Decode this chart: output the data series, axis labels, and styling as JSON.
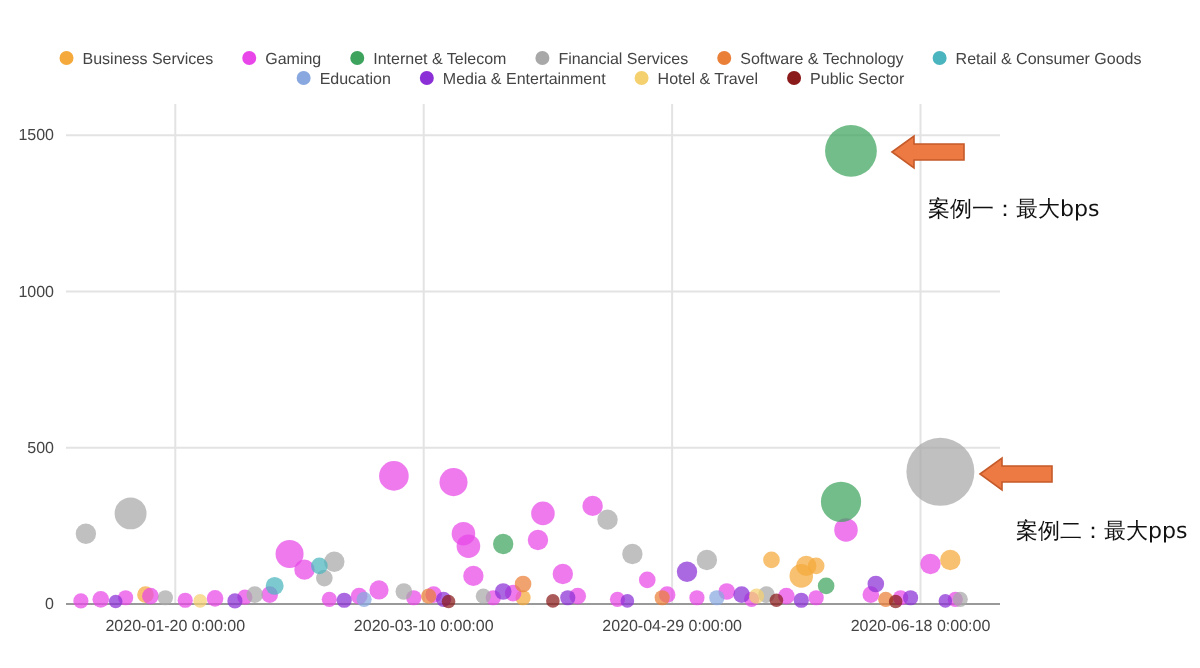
{
  "chart_data": {
    "type": "bubble",
    "xlim": [
      "2019-12-29",
      "2020-07-04"
    ],
    "ylim": [
      0,
      1600
    ],
    "xticks": [
      {
        "value": "2020-01-20",
        "label": "2020-01-20 0:00:00"
      },
      {
        "value": "2020-03-10",
        "label": "2020-03-10 0:00:00"
      },
      {
        "value": "2020-04-29",
        "label": "2020-04-29 0:00:00"
      },
      {
        "value": "2020-06-18",
        "label": "2020-06-18 0:00:00"
      }
    ],
    "yticks": [
      0,
      500,
      1000,
      1500
    ],
    "grid": true,
    "legend": "top",
    "annotations": [
      "案例一：最大bps",
      "案例二：最大pps"
    ],
    "series": [
      {
        "name": "Business Services",
        "color": "#f5a93a",
        "x": [
          "2020-01-14",
          "2020-03-30",
          "2020-05-19",
          "2020-05-25",
          "2020-05-26",
          "2020-05-28",
          "2020-06-24"
        ],
        "values": [
          30,
          20,
          141,
          90,
          122,
          122,
          141
        ],
        "sizes": [
          0.06,
          0.05,
          0.06,
          0.12,
          0.09,
          0.06,
          0.09
        ]
      },
      {
        "name": "Gaming",
        "color": "#e846e8",
        "x": [
          "2020-01-01",
          "2020-01-05",
          "2020-01-10",
          "2020-01-15",
          "2020-01-22",
          "2020-01-28",
          "2020-02-03",
          "2020-02-08",
          "2020-02-12",
          "2020-02-15",
          "2020-02-20",
          "2020-02-26",
          "2020-03-01",
          "2020-03-04",
          "2020-03-08",
          "2020-03-12",
          "2020-03-16",
          "2020-03-18",
          "2020-03-19",
          "2020-03-20",
          "2020-03-24",
          "2020-03-28",
          "2020-04-02",
          "2020-04-03",
          "2020-04-07",
          "2020-04-10",
          "2020-04-13",
          "2020-04-18",
          "2020-04-24",
          "2020-04-28",
          "2020-05-04",
          "2020-05-10",
          "2020-05-15",
          "2020-05-22",
          "2020-05-28",
          "2020-06-03",
          "2020-06-08",
          "2020-06-14",
          "2020-06-20",
          "2020-06-25"
        ],
        "values": [
          10,
          15,
          20,
          25,
          12,
          18,
          22,
          30,
          160,
          110,
          15,
          25,
          45,
          410,
          20,
          30,
          390,
          225,
          185,
          90,
          20,
          35,
          205,
          290,
          96,
          25,
          314,
          15,
          77,
          30,
          20,
          40,
          15,
          25,
          20,
          237,
          30,
          20,
          128,
          15
        ],
        "sizes": [
          0.05,
          0.06,
          0.05,
          0.06,
          0.05,
          0.06,
          0.05,
          0.06,
          0.17,
          0.09,
          0.05,
          0.06,
          0.08,
          0.19,
          0.05,
          0.06,
          0.17,
          0.12,
          0.12,
          0.09,
          0.05,
          0.06,
          0.09,
          0.12,
          0.09,
          0.06,
          0.09,
          0.05,
          0.06,
          0.06,
          0.05,
          0.06,
          0.05,
          0.06,
          0.05,
          0.12,
          0.06,
          0.05,
          0.09,
          0.05
        ]
      },
      {
        "name": "Internet & Telecom",
        "color": "#3da35d",
        "x": [
          "2020-03-26",
          "2020-05-30",
          "2020-06-02",
          "2020-06-04"
        ],
        "values": [
          192,
          58,
          327,
          1450
        ],
        "sizes": [
          0.09,
          0.06,
          0.35,
          0.58
        ]
      },
      {
        "name": "Financial Services",
        "color": "#a8a8a8",
        "x": [
          "2020-01-02",
          "2020-01-11",
          "2020-01-18",
          "2020-02-05",
          "2020-02-19",
          "2020-02-21",
          "2020-03-06",
          "2020-03-22",
          "2020-04-16",
          "2020-04-21",
          "2020-05-06",
          "2020-05-18",
          "2020-06-22",
          "2020-06-26"
        ],
        "values": [
          225,
          290,
          20,
          30,
          83,
          135,
          40,
          25,
          270,
          160,
          141,
          30,
          423,
          15
        ],
        "sizes": [
          0.09,
          0.22,
          0.05,
          0.06,
          0.06,
          0.09,
          0.06,
          0.05,
          0.09,
          0.09,
          0.09,
          0.06,
          1,
          0.05
        ]
      },
      {
        "name": "Software & Technology",
        "color": "#ea7f38",
        "x": [
          "2020-03-11",
          "2020-03-30",
          "2020-04-27",
          "2020-06-11"
        ],
        "values": [
          25,
          64,
          20,
          15
        ],
        "sizes": [
          0.05,
          0.06,
          0.05,
          0.05
        ]
      },
      {
        "name": "Retail & Consumer Goods",
        "color": "#4ab5be",
        "x": [
          "2020-02-09",
          "2020-02-18"
        ],
        "values": [
          58,
          122
        ],
        "sizes": [
          0.07,
          0.06
        ]
      },
      {
        "name": "Education",
        "color": "#88a8df",
        "x": [
          "2020-02-27",
          "2020-05-08"
        ],
        "values": [
          15,
          20
        ],
        "sizes": [
          0.05,
          0.05
        ]
      },
      {
        "name": "Media & Entertainment",
        "color": "#8b2fd6",
        "x": [
          "2020-01-08",
          "2020-02-01",
          "2020-02-23",
          "2020-03-14",
          "2020-03-26",
          "2020-04-08",
          "2020-04-20",
          "2020-05-02",
          "2020-05-13",
          "2020-05-25",
          "2020-06-09",
          "2020-06-16",
          "2020-06-23"
        ],
        "values": [
          8,
          10,
          12,
          15,
          40,
          20,
          10,
          103,
          30,
          12,
          64,
          20,
          10
        ],
        "sizes": [
          0.04,
          0.05,
          0.05,
          0.05,
          0.06,
          0.05,
          0.04,
          0.09,
          0.06,
          0.05,
          0.06,
          0.05,
          0.04
        ]
      },
      {
        "name": "Hotel & Travel",
        "color": "#f4d06f",
        "x": [
          "2020-01-25",
          "2020-05-16"
        ],
        "values": [
          10,
          25
        ],
        "sizes": [
          0.04,
          0.05
        ]
      },
      {
        "name": "Public Sector",
        "color": "#8b1a1a",
        "x": [
          "2020-03-15",
          "2020-04-05",
          "2020-05-20",
          "2020-06-13"
        ],
        "values": [
          8,
          10,
          12,
          8
        ],
        "sizes": [
          0.04,
          0.04,
          0.04,
          0.04
        ]
      }
    ]
  }
}
